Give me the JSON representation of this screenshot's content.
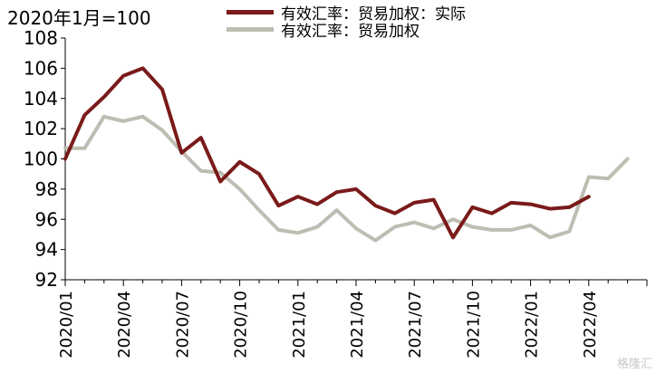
{
  "chart_data": {
    "type": "line",
    "title": "",
    "xlabel": "",
    "ylabel": "",
    "unit_label": "2020年1月=100",
    "ylim": [
      92,
      108
    ],
    "yticks": [
      92,
      94,
      96,
      98,
      100,
      102,
      104,
      106,
      108
    ],
    "x_tick_labels": [
      "2020/01",
      "2020/04",
      "2020/07",
      "2020/10",
      "2021/01",
      "2021/04",
      "2021/07",
      "2021/10",
      "2022/01",
      "2022/04"
    ],
    "x_tick_every": 3,
    "x_total_points": 31,
    "grid": false,
    "legend_position": "top",
    "series": [
      {
        "name": "有效汇率：贸易加权：实际",
        "color": "#7a1a1a",
        "values": [
          100.0,
          102.9,
          104.1,
          105.5,
          106.0,
          104.6,
          100.4,
          101.4,
          98.5,
          99.8,
          99.0,
          96.9,
          97.5,
          97.0,
          97.8,
          98.0,
          96.9,
          96.4,
          97.1,
          97.3,
          94.8,
          96.8,
          96.4,
          97.1,
          97.0,
          96.7,
          96.8,
          97.5
        ]
      },
      {
        "name": "有效汇率：贸易加权",
        "color": "#bdbdb2",
        "values": [
          100.7,
          100.7,
          102.8,
          102.5,
          102.8,
          101.9,
          100.5,
          99.2,
          99.1,
          98.0,
          96.6,
          95.3,
          95.1,
          95.5,
          96.6,
          95.4,
          94.6,
          95.5,
          95.8,
          95.4,
          96.0,
          95.5,
          95.3,
          95.3,
          95.6,
          94.8,
          95.2,
          98.8,
          98.7,
          100.0
        ]
      }
    ]
  },
  "watermark": "格隆汇"
}
